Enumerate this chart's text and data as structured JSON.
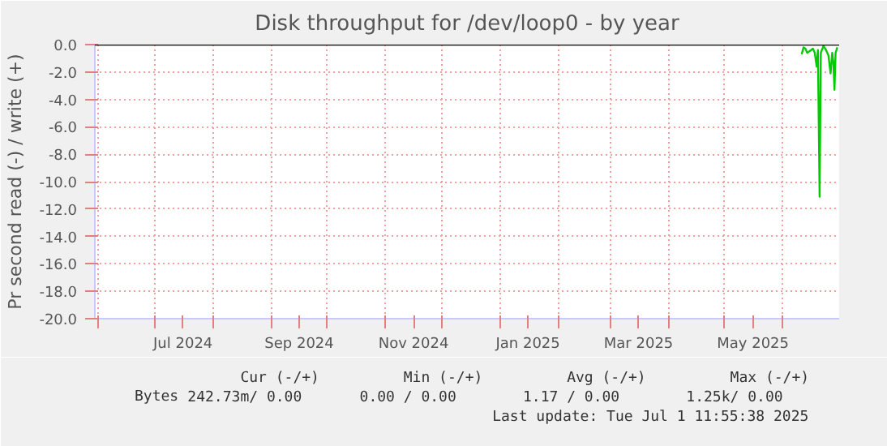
{
  "chart_data": {
    "type": "line",
    "title": "Disk throughput for /dev/loop0 - by year",
    "ylabel": "Pr second read (-) / write (+)",
    "x": [
      "2025-06-11T00:00",
      "2025-06-12T00:00",
      "2025-06-13T00:00",
      "2025-06-14T00:00",
      "2025-06-16T00:00",
      "2025-06-17T00:00",
      "2025-06-18T00:00",
      "2025-06-19T00:00",
      "2025-06-19T16:00",
      "2025-06-20T14:00",
      "2025-06-21T05:00",
      "2025-06-22T15:00",
      "2025-06-24T00:00",
      "2025-06-25T07:00",
      "2025-06-26T10:00",
      "2025-06-27T07:00",
      "2025-06-27T22:00",
      "2025-06-28T12:00",
      "2025-06-29T02:00",
      "2025-06-30T00:00"
    ],
    "series": [
      {
        "name": "Bytes",
        "color": "#00cc00",
        "values": [
          -0.7,
          -0.2,
          -0.3,
          -0.6,
          -0.4,
          -0.3,
          -0.6,
          -1.6,
          -0.4,
          -11.1,
          -0.6,
          -0.1,
          -0.4,
          -0.8,
          -2.1,
          -0.6,
          -1.3,
          -3.3,
          -0.6,
          -0.2
        ]
      }
    ],
    "xlim": [
      "2024-05-30",
      "2025-07-01"
    ],
    "xticks": [
      {
        "value": "2024-06-01",
        "label": null
      },
      {
        "value": "2024-07-01",
        "label": null
      },
      {
        "value": "2024-07-16",
        "label": "Jul 2024"
      },
      {
        "value": "2024-08-01",
        "label": null
      },
      {
        "value": "2024-09-01",
        "label": null
      },
      {
        "value": "2024-09-16",
        "label": "Sep 2024"
      },
      {
        "value": "2024-10-01",
        "label": null
      },
      {
        "value": "2024-11-01",
        "label": null
      },
      {
        "value": "2024-11-16",
        "label": "Nov 2024"
      },
      {
        "value": "2024-12-01",
        "label": null
      },
      {
        "value": "2025-01-01",
        "label": null
      },
      {
        "value": "2025-01-16",
        "label": "Jan 2025"
      },
      {
        "value": "2025-02-01",
        "label": null
      },
      {
        "value": "2025-03-01",
        "label": null
      },
      {
        "value": "2025-03-16",
        "label": "Mar 2025"
      },
      {
        "value": "2025-04-01",
        "label": null
      },
      {
        "value": "2025-05-01",
        "label": null
      },
      {
        "value": "2025-05-16",
        "label": "May 2025"
      },
      {
        "value": "2025-06-01",
        "label": null
      }
    ],
    "ylim": [
      -20,
      0
    ],
    "yticks": [
      {
        "value": 0,
        "label": "0.0"
      },
      {
        "value": -2,
        "label": "-2.0"
      },
      {
        "value": -4,
        "label": "-4.0"
      },
      {
        "value": -6,
        "label": "-6.0"
      },
      {
        "value": -8,
        "label": "-8.0"
      },
      {
        "value": -10,
        "label": "-10.0"
      },
      {
        "value": -12,
        "label": "-12.0"
      },
      {
        "value": -14,
        "label": "-14.0"
      },
      {
        "value": -16,
        "label": "-16.0"
      },
      {
        "value": -18,
        "label": "-18.0"
      },
      {
        "value": -20,
        "label": "-20.0"
      }
    ],
    "ref_lines": [
      {
        "axis": "y",
        "value": 0,
        "label": null,
        "color": "#000000"
      }
    ],
    "grid": true,
    "legend": "bottom left",
    "marker": "none",
    "line_style": "solid",
    "annotations": [
      "Cur (-/+)",
      "Min (-/+)",
      "Avg (-/+)",
      "Max (-/+)",
      "242.73m/   0.00",
      "0.00 /    0.00",
      "1.17 /    0.00",
      "1.25k/    0.00",
      "Last update: Tue Jul  1 11:55:38 2025"
    ]
  }
}
